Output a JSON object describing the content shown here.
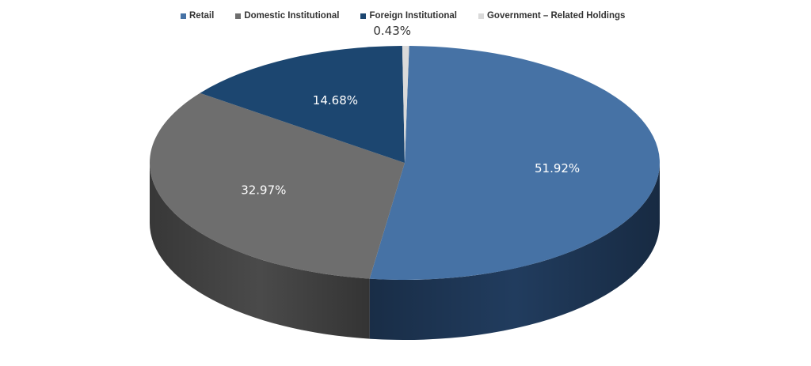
{
  "chart_data": {
    "type": "pie",
    "title": "",
    "legend_position": "top",
    "three_d": true,
    "categories": [
      "Retail",
      "Domestic Institutional",
      "Foreign Institutional",
      "Government – Related Holdings"
    ],
    "values": [
      51.92,
      32.97,
      14.68,
      0.43
    ],
    "data_labels": [
      "51.92%",
      "32.97%",
      "14.68%",
      "0.43%"
    ],
    "colors": [
      "#4672a5",
      "#6e6e6e",
      "#1c4670",
      "#dadada"
    ],
    "side_colors": [
      "#213c5e",
      "#4a4a4a",
      "#16324f",
      "#a8a8a8"
    ],
    "label_colors": [
      "#ffffff",
      "#ffffff",
      "#ffffff",
      "#333333"
    ]
  }
}
